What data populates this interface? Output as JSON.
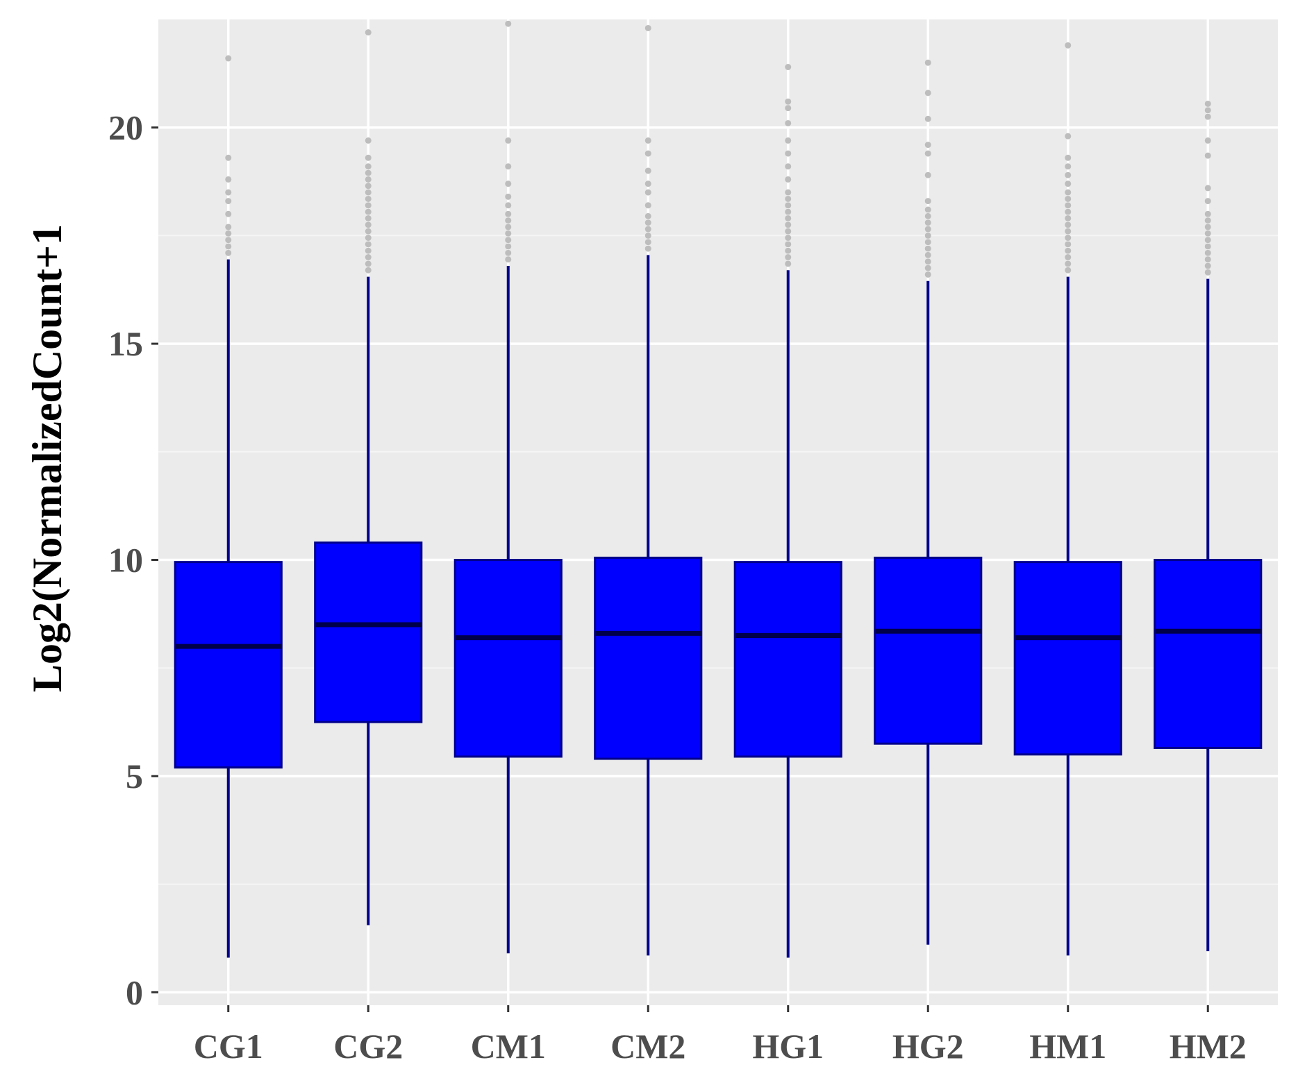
{
  "chart_data": {
    "type": "box",
    "title": "",
    "xlabel": "",
    "ylabel": "Log2(NormalizedCount+1",
    "ylim": [
      -0.3,
      22.5
    ],
    "yticks": [
      0,
      5,
      10,
      15,
      20
    ],
    "ytick_labels": [
      "0",
      "5",
      "10",
      "15",
      "20"
    ],
    "grid": true,
    "legend": "none",
    "colors": {
      "box_fill": "#0000ff",
      "box_stroke": "#00008b",
      "median": "#00004a",
      "whisker": "#00008b",
      "outlier": "#bdbdbd",
      "panel_bg": "#ebebeb",
      "grid_major": "#ffffff",
      "grid_minor": "#f5f5f5",
      "tick_text": "#4d4d4d",
      "axis_title": "#000000"
    },
    "categories": [
      "CG1",
      "CG2",
      "CM1",
      "CM2",
      "HG1",
      "HG2",
      "HM1",
      "HM2"
    ],
    "boxes": [
      {
        "name": "CG1",
        "lower_whisker": 0.8,
        "q1": 5.2,
        "median": 8.0,
        "q3": 9.95,
        "upper_whisker": 16.95,
        "outliers": [
          17.1,
          17.25,
          17.4,
          17.55,
          17.7,
          18.0,
          18.3,
          18.5,
          18.8,
          19.3,
          21.6
        ]
      },
      {
        "name": "CG2",
        "lower_whisker": 1.55,
        "q1": 6.25,
        "median": 8.5,
        "q3": 10.4,
        "upper_whisker": 16.55,
        "outliers": [
          16.7,
          16.85,
          17.0,
          17.15,
          17.3,
          17.45,
          17.6,
          17.75,
          17.9,
          18.05,
          18.2,
          18.35,
          18.5,
          18.65,
          18.8,
          18.95,
          19.1,
          19.3,
          19.7,
          22.2
        ]
      },
      {
        "name": "CM1",
        "lower_whisker": 0.9,
        "q1": 5.45,
        "median": 8.2,
        "q3": 10.0,
        "upper_whisker": 16.8,
        "outliers": [
          16.95,
          17.1,
          17.25,
          17.4,
          17.55,
          17.7,
          17.85,
          18.0,
          18.2,
          18.4,
          18.7,
          19.1,
          19.7,
          22.4
        ]
      },
      {
        "name": "CM2",
        "lower_whisker": 0.85,
        "q1": 5.4,
        "median": 8.3,
        "q3": 10.05,
        "upper_whisker": 17.05,
        "outliers": [
          17.2,
          17.35,
          17.5,
          17.65,
          17.8,
          17.95,
          18.2,
          18.5,
          18.7,
          19.0,
          19.4,
          19.7,
          22.3
        ]
      },
      {
        "name": "HG1",
        "lower_whisker": 0.8,
        "q1": 5.45,
        "median": 8.25,
        "q3": 9.95,
        "upper_whisker": 16.7,
        "outliers": [
          16.85,
          17.0,
          17.15,
          17.3,
          17.45,
          17.6,
          17.75,
          17.9,
          18.05,
          18.2,
          18.35,
          18.5,
          18.8,
          19.1,
          19.4,
          19.7,
          20.1,
          20.45,
          20.6,
          21.4
        ]
      },
      {
        "name": "HG2",
        "lower_whisker": 1.1,
        "q1": 5.75,
        "median": 8.35,
        "q3": 10.05,
        "upper_whisker": 16.45,
        "outliers": [
          16.6,
          16.75,
          16.9,
          17.05,
          17.2,
          17.35,
          17.5,
          17.65,
          17.8,
          17.95,
          18.1,
          18.3,
          18.9,
          19.4,
          19.6,
          20.2,
          20.8,
          21.5
        ]
      },
      {
        "name": "HM1",
        "lower_whisker": 0.85,
        "q1": 5.5,
        "median": 8.2,
        "q3": 9.95,
        "upper_whisker": 16.55,
        "outliers": [
          16.7,
          16.85,
          17.0,
          17.15,
          17.3,
          17.45,
          17.6,
          17.75,
          17.9,
          18.05,
          18.2,
          18.35,
          18.5,
          18.7,
          18.9,
          19.1,
          19.3,
          19.8,
          21.9
        ]
      },
      {
        "name": "HM2",
        "lower_whisker": 0.95,
        "q1": 5.65,
        "median": 8.35,
        "q3": 10.0,
        "upper_whisker": 16.5,
        "outliers": [
          16.65,
          16.8,
          16.95,
          17.1,
          17.25,
          17.4,
          17.55,
          17.7,
          17.85,
          18.0,
          18.3,
          18.6,
          19.35,
          19.7,
          20.25,
          20.4,
          20.55
        ]
      }
    ]
  }
}
